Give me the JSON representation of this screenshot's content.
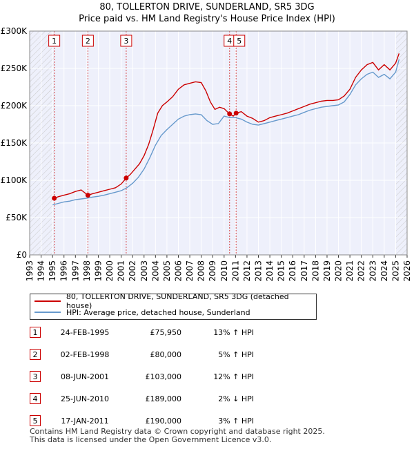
{
  "title_line1": "80, TOLLERTON DRIVE, SUNDERLAND, SR5 3DG",
  "title_line2": "Price paid vs. HM Land Registry's House Price Index (HPI)",
  "colors": {
    "price": "#cc0000",
    "hpi": "#6699cc",
    "marker": "#cc0000"
  },
  "chart_data": {
    "type": "line",
    "xlim": [
      1993,
      2026
    ],
    "ylim": [
      0,
      300000
    ],
    "x_ticks": [
      "1993",
      "1994",
      "1995",
      "1996",
      "1997",
      "1998",
      "1999",
      "2000",
      "2001",
      "2002",
      "2003",
      "2004",
      "2005",
      "2006",
      "2007",
      "2008",
      "2009",
      "2010",
      "2011",
      "2012",
      "2013",
      "2014",
      "2015",
      "2016",
      "2017",
      "2018",
      "2019",
      "2020",
      "2021",
      "2022",
      "2023",
      "2024",
      "2025",
      "2026"
    ],
    "y_ticks": [
      {
        "value": 0,
        "label": "£0"
      },
      {
        "value": 50000,
        "label": "£50K"
      },
      {
        "value": 100000,
        "label": "£100K"
      },
      {
        "value": 150000,
        "label": "£150K"
      },
      {
        "value": 200000,
        "label": "£200K"
      },
      {
        "value": 250000,
        "label": "£250K"
      },
      {
        "value": 300000,
        "label": "£300K"
      }
    ],
    "hatch_ranges": [
      [
        1993,
        1995.15
      ],
      [
        2025.0,
        2026
      ]
    ],
    "series": [
      {
        "name": "80, TOLLERTON DRIVE, SUNDERLAND, SR5 3DG (detached house)",
        "color": "#cc0000",
        "x": [
          1995.15,
          1995.5,
          1996,
          1996.5,
          1997,
          1997.5,
          1998.09,
          1998.5,
          1999,
          1999.5,
          2000,
          2000.5,
          2001.0,
          2001.44,
          2001.8,
          2002.2,
          2002.6,
          2003.0,
          2003.4,
          2003.8,
          2004.2,
          2004.6,
          2005.0,
          2005.5,
          2006.0,
          2006.5,
          2007.0,
          2007.5,
          2008.0,
          2008.4,
          2008.8,
          2009.2,
          2009.6,
          2010.0,
          2010.48,
          2010.8,
          2011.05,
          2011.5,
          2012.0,
          2012.5,
          2013.0,
          2013.5,
          2014.0,
          2014.5,
          2015.0,
          2015.5,
          2016.0,
          2016.5,
          2017.0,
          2017.5,
          2018.0,
          2018.5,
          2019.0,
          2019.5,
          2020.0,
          2020.5,
          2021.0,
          2021.5,
          2022.0,
          2022.5,
          2023.0,
          2023.5,
          2024.0,
          2024.5,
          2025.0,
          2025.3
        ],
        "y": [
          75950,
          78000,
          80000,
          82000,
          85000,
          87000,
          80000,
          82000,
          84000,
          86000,
          88000,
          90000,
          95000,
          103000,
          108000,
          115000,
          122000,
          133000,
          148000,
          168000,
          190000,
          200000,
          205000,
          212000,
          222000,
          228000,
          230000,
          232000,
          231000,
          220000,
          205000,
          195000,
          198000,
          196000,
          189000,
          186000,
          190000,
          192000,
          186000,
          183000,
          178000,
          180000,
          184000,
          186000,
          188000,
          190000,
          193000,
          196000,
          199000,
          202000,
          204000,
          206000,
          207000,
          207000,
          208000,
          213000,
          222000,
          238000,
          248000,
          255000,
          258000,
          248000,
          255000,
          248000,
          257000,
          270000
        ]
      },
      {
        "name": "HPI: Average price, detached house, Sunderland",
        "color": "#6699cc",
        "x": [
          1995.0,
          1995.5,
          1996,
          1996.5,
          1997,
          1997.5,
          1998.0,
          1998.5,
          1999,
          1999.5,
          2000,
          2000.5,
          2001.0,
          2001.5,
          2002.0,
          2002.5,
          2003.0,
          2003.5,
          2004.0,
          2004.5,
          2005.0,
          2005.5,
          2006.0,
          2006.5,
          2007.0,
          2007.5,
          2008.0,
          2008.5,
          2009.0,
          2009.5,
          2010.0,
          2010.5,
          2011.0,
          2011.5,
          2012.0,
          2012.5,
          2013.0,
          2013.5,
          2014.0,
          2014.5,
          2015.0,
          2015.5,
          2016.0,
          2016.5,
          2017.0,
          2017.5,
          2018.0,
          2018.5,
          2019.0,
          2019.5,
          2020.0,
          2020.5,
          2021.0,
          2021.5,
          2022.0,
          2022.5,
          2023.0,
          2023.5,
          2024.0,
          2024.5,
          2025.0,
          2025.3
        ],
        "y": [
          67000,
          69000,
          71000,
          72000,
          74000,
          75000,
          76000,
          77500,
          78500,
          80000,
          82000,
          84000,
          86000,
          90000,
          96000,
          104000,
          115000,
          130000,
          147000,
          160000,
          168000,
          175000,
          182000,
          186000,
          188000,
          189000,
          188000,
          180000,
          175000,
          176000,
          186000,
          184000,
          184000,
          182000,
          178000,
          175000,
          174000,
          176000,
          178000,
          180000,
          182000,
          184000,
          186000,
          188000,
          191000,
          194000,
          196000,
          198000,
          199000,
          200000,
          201000,
          205000,
          215000,
          228000,
          236000,
          242000,
          245000,
          238000,
          242000,
          236000,
          245000,
          262000
        ]
      }
    ],
    "sales_markers": [
      {
        "label": "1",
        "x": 1995.15,
        "y": 75950
      },
      {
        "label": "2",
        "x": 1998.09,
        "y": 80000
      },
      {
        "label": "3",
        "x": 2001.44,
        "y": 103000
      },
      {
        "label": "4",
        "x": 2010.48,
        "y": 189000
      },
      {
        "label": "5",
        "x": 2011.05,
        "y": 190000
      }
    ]
  },
  "legend": {
    "price_label": "80, TOLLERTON DRIVE, SUNDERLAND, SR5 3DG (detached house)",
    "hpi_label": "HPI: Average price, detached house, Sunderland"
  },
  "sales": [
    {
      "num": "1",
      "date": "24-FEB-1995",
      "price": "£75,950",
      "hpi": "13% ↑ HPI"
    },
    {
      "num": "2",
      "date": "02-FEB-1998",
      "price": "£80,000",
      "hpi": "5% ↑ HPI"
    },
    {
      "num": "3",
      "date": "08-JUN-2001",
      "price": "£103,000",
      "hpi": "12% ↑ HPI"
    },
    {
      "num": "4",
      "date": "25-JUN-2010",
      "price": "£189,000",
      "hpi": "2% ↓ HPI"
    },
    {
      "num": "5",
      "date": "17-JAN-2011",
      "price": "£190,000",
      "hpi": "3% ↑ HPI"
    }
  ],
  "footer": {
    "line1": "Contains HM Land Registry data © Crown copyright and database right 2025.",
    "line2": "This data is licensed under the Open Government Licence v3.0."
  }
}
